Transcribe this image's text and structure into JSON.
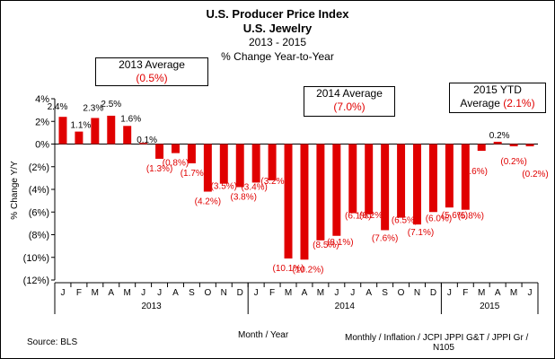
{
  "titles": {
    "line1": "U.S. Producer Price Index",
    "line2": "U.S. Jewelry",
    "line3": "2013 - 2015",
    "line4": "% Change Year-to-Year"
  },
  "averages": [
    {
      "label": "2013 Average",
      "value": "(0.5%)"
    },
    {
      "label": "2014 Average",
      "value": "(7.0%)"
    },
    {
      "label": "2015 YTD",
      "label2": "Average",
      "value": "(2.1%)"
    }
  ],
  "footer": {
    "source": "Source:  BLS",
    "xtitle": "Month / Year",
    "note_line1": "Monthly / Inflation / JCPI  JPPI  G&T / JPPI  Gr /",
    "note_line2": "N105"
  },
  "colors": {
    "bar": "#e00000",
    "negative_label": "#e00000"
  },
  "chart_data": {
    "type": "bar",
    "ylabel": "% Change Y/Y",
    "xlabel": "Month / Year",
    "ylim": [
      -12,
      4
    ],
    "yticks": [
      "4%",
      "2%",
      "0%",
      "(2%)",
      "(4%)",
      "(6%)",
      "(8%)",
      "(10%)",
      "(12%)"
    ],
    "ytick_values": [
      4,
      2,
      0,
      -2,
      -4,
      -6,
      -8,
      -10,
      -12
    ],
    "categories": [
      "J",
      "F",
      "M",
      "A",
      "M",
      "J",
      "J",
      "A",
      "S",
      "O",
      "N",
      "D",
      "J",
      "F",
      "M",
      "A",
      "M",
      "J",
      "J",
      "A",
      "S",
      "O",
      "N",
      "D",
      "J",
      "F",
      "M",
      "A",
      "M",
      "J"
    ],
    "years": [
      "2013",
      "2014",
      "2015"
    ],
    "values": [
      2.4,
      1.1,
      2.3,
      2.5,
      1.6,
      0.1,
      -1.3,
      -0.8,
      -1.7,
      -4.2,
      -3.5,
      -3.8,
      -3.4,
      -3.2,
      -10.1,
      -10.2,
      -8.5,
      -8.1,
      -6.1,
      -6.2,
      -7.6,
      -6.5,
      -7.1,
      -6.0,
      -5.6,
      -5.8,
      -0.6,
      0.2,
      -0.2,
      -0.2
    ],
    "data_labels": [
      "2.4%",
      "1.1%",
      "2.3%",
      "2.5%",
      "1.6%",
      "0.1%",
      "(1.3%)",
      "(0.8%)",
      "(1.7%)",
      "(4.2%)",
      "(3.5%)",
      "(3.8%)",
      "(3.4%)",
      "(3.2%)",
      "(10.1%)",
      "(10.2%)",
      "(8.5%)",
      "(8.1%)",
      "(6.1%)",
      "(6.2%)",
      "(7.6%)",
      "(6.5%)",
      "(7.1%)",
      "(6.0%)",
      "(5.6%)",
      "(5.8%)",
      "(0.6%)",
      "0.2%",
      "(0.2%)",
      "(0.2%)"
    ],
    "grid": false,
    "legend": "none"
  }
}
